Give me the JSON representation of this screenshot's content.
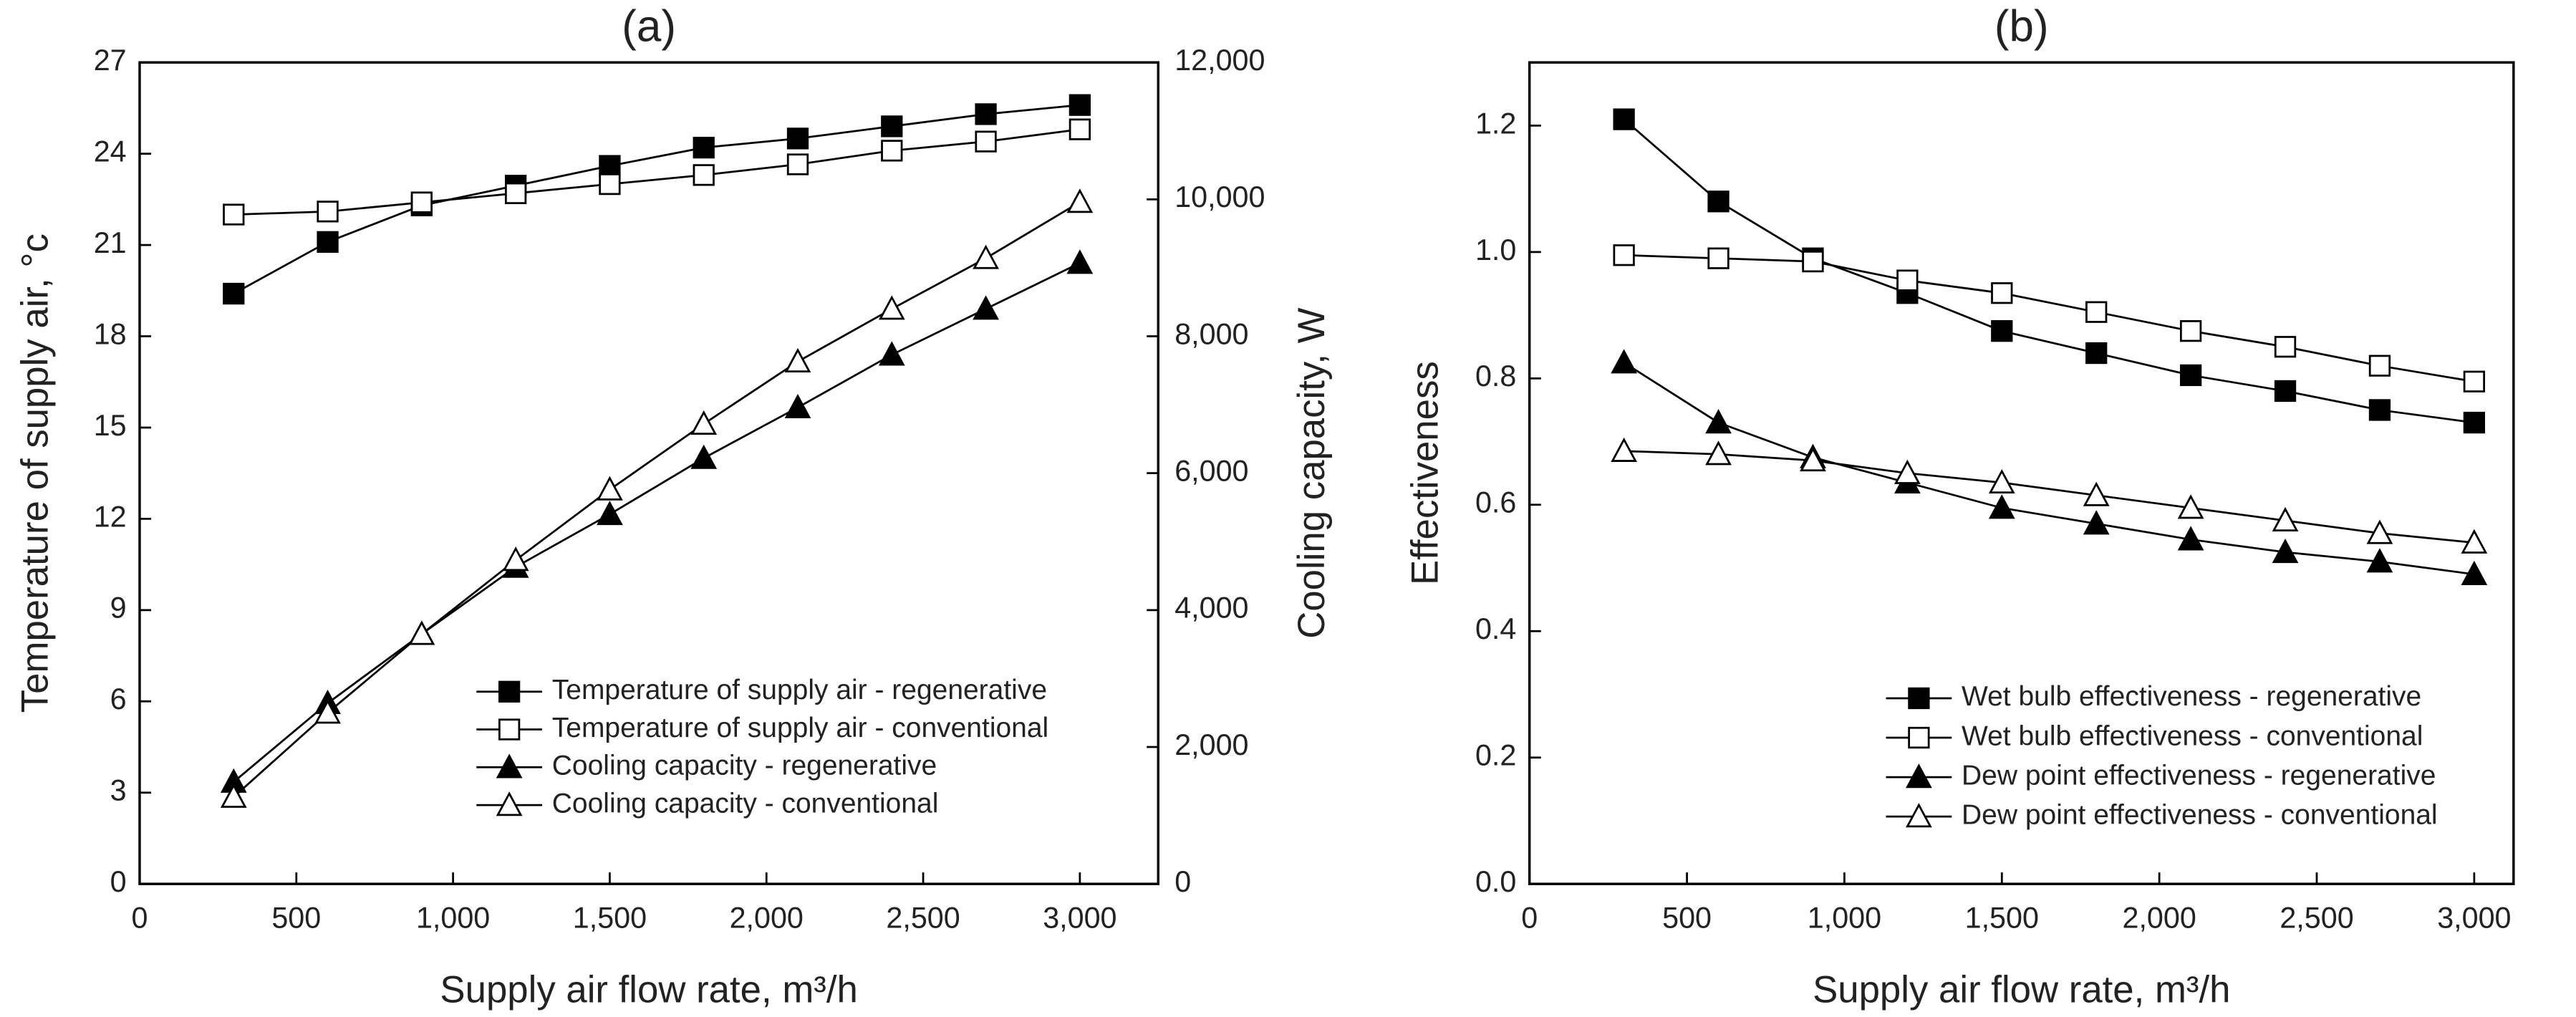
{
  "chart_data": [
    {
      "type": "line",
      "title": "(a)",
      "xlabel": "Supply air flow rate, m³/h",
      "ylabel": "Temperature of supply air, °c",
      "y2label": "Cooling capacity, W",
      "xlim": [
        0,
        3250
      ],
      "xticks": [
        0,
        500,
        {
          "value": 1000,
          "label": "1,000"
        },
        {
          "value": 1500,
          "label": "1,500"
        },
        {
          "value": 2000,
          "label": "2,000"
        },
        {
          "value": 2500,
          "label": "2,500"
        },
        {
          "value": 3000,
          "label": "3,000"
        }
      ],
      "ylim": [
        0,
        27
      ],
      "yticks": [
        0,
        3,
        6,
        9,
        12,
        15,
        18,
        21,
        24,
        27
      ],
      "y2lim": [
        0,
        12000
      ],
      "y2ticks": [
        0,
        {
          "value": 2000,
          "label": "2,000"
        },
        {
          "value": 4000,
          "label": "4,000"
        },
        {
          "value": 6000,
          "label": "6,000"
        },
        {
          "value": 8000,
          "label": "8,000"
        },
        {
          "value": 10000,
          "label": "10,000"
        },
        {
          "value": 12000,
          "label": "12,000"
        }
      ],
      "legend": "lower right",
      "x": [
        300,
        600,
        900,
        1200,
        1500,
        1800,
        2100,
        2400,
        2700,
        3000
      ],
      "series": [
        {
          "name": "Temperature of supply air - regenerative",
          "color": "#000000",
          "marker": "square",
          "filled": true,
          "values": [
            19.4,
            21.1,
            22.3,
            22.95,
            23.6,
            24.2,
            24.5,
            24.9,
            25.3,
            25.6
          ]
        },
        {
          "name": "Temperature of supply air - conventional",
          "color": "#000000",
          "marker": "square",
          "filled": false,
          "values": [
            22.0,
            22.1,
            22.4,
            22.7,
            23.0,
            23.3,
            23.65,
            24.1,
            24.4,
            24.8
          ]
        },
        {
          "name": "Cooling capacity - regenerative",
          "color": "#000000",
          "marker": "triangle",
          "filled": true,
          "axis": "y2",
          "values": [
            1490,
            2640,
            3650,
            4630,
            5400,
            6220,
            6960,
            7730,
            8400,
            9070
          ]
        },
        {
          "name": "Cooling capacity - conventional",
          "color": "#000000",
          "marker": "triangle",
          "filled": false,
          "axis": "y2",
          "values": [
            1270,
            2500,
            3650,
            4730,
            5760,
            6720,
            7630,
            8400,
            9140,
            9960
          ]
        }
      ]
    },
    {
      "type": "line",
      "title": "(b)",
      "xlabel": "Supply air flow rate, m³/h",
      "ylabel": "Effectiveness",
      "xlim": [
        0,
        3125
      ],
      "xticks": [
        0,
        500,
        {
          "value": 1000,
          "label": "1,000"
        },
        {
          "value": 1500,
          "label": "1,500"
        },
        {
          "value": 2000,
          "label": "2,000"
        },
        {
          "value": 2500,
          "label": "2,500"
        },
        {
          "value": 3000,
          "label": "3,000"
        }
      ],
      "ylim": [
        0,
        1.3
      ],
      "yticks": [
        {
          "value": 0,
          "label": "0.0"
        },
        0.2,
        0.4,
        0.6,
        0.8,
        {
          "value": 1,
          "label": "1.0"
        },
        1.2
      ],
      "legend": "lower right",
      "x": [
        300,
        600,
        900,
        1200,
        1500,
        1800,
        2100,
        2400,
        2700,
        3000
      ],
      "series": [
        {
          "name": "Wet bulb effectiveness - regenerative",
          "color": "#000000",
          "marker": "square",
          "filled": true,
          "values": [
            1.21,
            1.08,
            0.99,
            0.935,
            0.875,
            0.84,
            0.805,
            0.78,
            0.75,
            0.73
          ]
        },
        {
          "name": "Wet bulb effectiveness - conventional",
          "color": "#000000",
          "marker": "square",
          "filled": false,
          "values": [
            0.995,
            0.99,
            0.985,
            0.955,
            0.935,
            0.905,
            0.875,
            0.85,
            0.82,
            0.795
          ]
        },
        {
          "name": "Dew point effectiveness - regenerative",
          "color": "#000000",
          "marker": "triangle",
          "filled": true,
          "values": [
            0.825,
            0.73,
            0.675,
            0.635,
            0.595,
            0.57,
            0.545,
            0.525,
            0.51,
            0.49
          ]
        },
        {
          "name": "Dew point effectiveness - conventional",
          "color": "#000000",
          "marker": "triangle",
          "filled": false,
          "values": [
            0.685,
            0.68,
            0.67,
            0.65,
            0.635,
            0.615,
            0.595,
            0.575,
            0.555,
            0.54
          ]
        }
      ]
    }
  ]
}
